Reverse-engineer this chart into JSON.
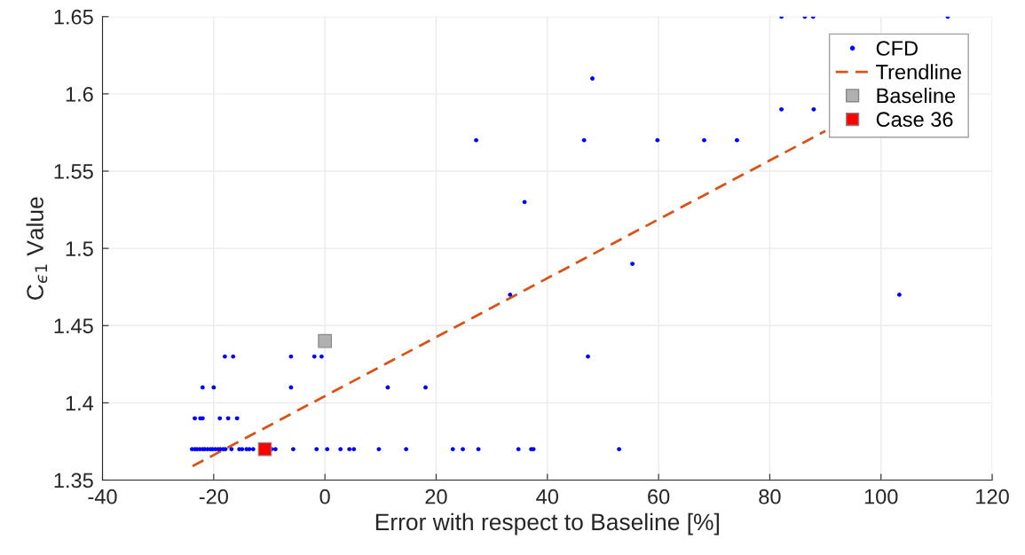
{
  "chart_data": {
    "type": "scatter",
    "xlabel": "Error with respect to Baseline [%]",
    "ylabel": "C$_{ϵ1}$ Value",
    "xlim": [
      -40,
      120
    ],
    "xticks": [
      -40,
      -20,
      0,
      20,
      40,
      60,
      80,
      100,
      120
    ],
    "ylim": [
      1.35,
      1.65
    ],
    "yticks": [
      1.35,
      1.4,
      1.45,
      1.5,
      1.55,
      1.6,
      1.65
    ],
    "grid": true,
    "legend": "top right",
    "series": [
      {
        "name": "CFD",
        "marker": "circle",
        "color": "#0000ff",
        "x": [
          -23.9,
          -23.4,
          -23.0,
          -22.5,
          -22.0,
          -21.6,
          -21.1,
          -20.6,
          -20.2,
          -19.7,
          -19.2,
          -18.8,
          -18.3,
          -17.9,
          -16.8,
          -15.4,
          -14.9,
          -14.1,
          -13.6,
          -12.9,
          -9.6,
          -8.9,
          -5.7,
          -1.5,
          0.4,
          2.8,
          4.4,
          5.2,
          9.7,
          14.6,
          23.0,
          24.8,
          27.6,
          34.8,
          37.1,
          37.5,
          52.9,
          -23.4,
          -22.4,
          -22.0,
          -18.9,
          -17.4,
          -15.8,
          -22.0,
          -20.0,
          -6.1,
          11.3,
          18.1,
          -18.0,
          -16.5,
          -6.1,
          -1.9,
          -0.6,
          47.3,
          33.3,
          103.3,
          55.3,
          35.9,
          27.2,
          46.6,
          59.8,
          68.2,
          74.1,
          82.1,
          87.9,
          48.1,
          82.1,
          86.3,
          87.8,
          112.0
        ],
        "values": [
          1.37,
          1.37,
          1.37,
          1.37,
          1.37,
          1.37,
          1.37,
          1.37,
          1.37,
          1.37,
          1.37,
          1.37,
          1.37,
          1.37,
          1.37,
          1.37,
          1.37,
          1.37,
          1.37,
          1.37,
          1.37,
          1.37,
          1.37,
          1.37,
          1.37,
          1.37,
          1.37,
          1.37,
          1.37,
          1.37,
          1.37,
          1.37,
          1.37,
          1.37,
          1.37,
          1.37,
          1.37,
          1.39,
          1.39,
          1.39,
          1.39,
          1.39,
          1.39,
          1.41,
          1.41,
          1.41,
          1.41,
          1.41,
          1.43,
          1.43,
          1.43,
          1.43,
          1.43,
          1.43,
          1.47,
          1.47,
          1.49,
          1.53,
          1.57,
          1.57,
          1.57,
          1.57,
          1.57,
          1.59,
          1.59,
          1.61,
          1.65,
          1.65,
          1.65,
          1.65
        ]
      },
      {
        "name": "Trendline",
        "type": "line",
        "line_style": "dashed",
        "marker": "none",
        "color": "#d95319",
        "x": [
          -23.8,
          90.0
        ],
        "values": [
          1.359,
          1.576
        ]
      },
      {
        "name": "Baseline",
        "type": "scatter",
        "marker": "square",
        "color": "#b0b0b0",
        "x": [
          0
        ],
        "values": [
          1.44
        ]
      },
      {
        "name": "Case 36",
        "type": "scatter",
        "marker": "square",
        "color": "#ff0000",
        "x": [
          -10.8
        ],
        "values": [
          1.37
        ]
      }
    ]
  }
}
